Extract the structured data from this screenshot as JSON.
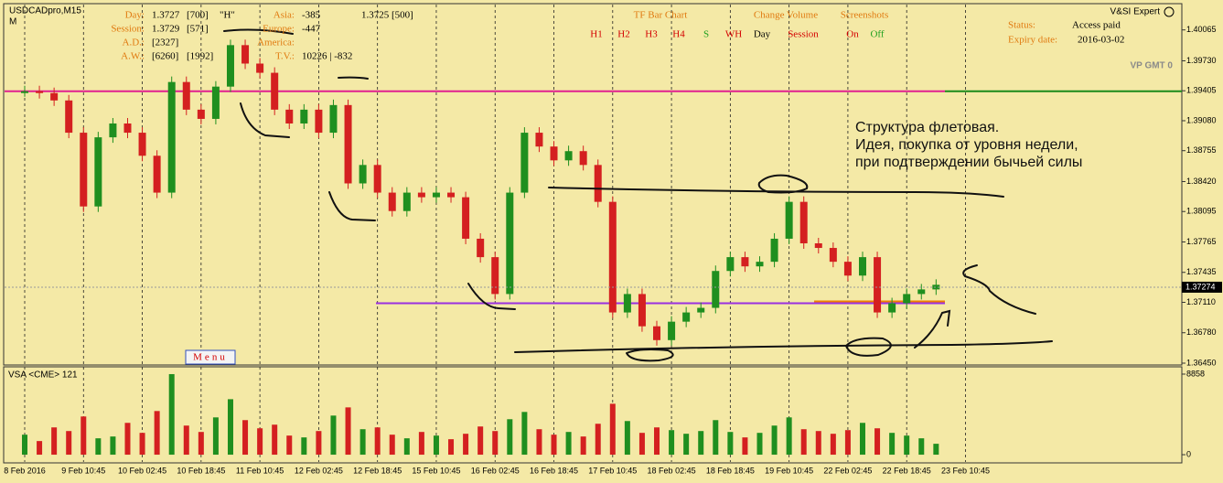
{
  "header": {
    "symbol": "USDCADpro,M15",
    "period": "M",
    "expert": "V&SI Expert",
    "vp": "VP GMT 0",
    "menu": "Menu",
    "volume_label": "VSA <CME> 121"
  },
  "info_panel": {
    "day": {
      "label": "Day:",
      "price": 1.3727,
      "count": "[700]",
      "flag": "\"H\""
    },
    "session": {
      "label": "Session:",
      "price": 1.3729,
      "count": "[571]"
    },
    "ad": {
      "label": "A.D.:",
      "value": "[2327]"
    },
    "aw": {
      "label": "A.W.:",
      "value": "[6260]",
      "value2": "[1992]"
    },
    "asia": {
      "label": "Asia:",
      "value": -385,
      "extra": "1.3725 [500]"
    },
    "europe": {
      "label": "Europe:",
      "value": -447
    },
    "america": {
      "label": "America:"
    },
    "tv": {
      "label": "T.V.:",
      "value": "10226 | -832"
    }
  },
  "tf_bar_chart": {
    "title": "TF Bar Chart",
    "buttons": [
      "H1",
      "H2",
      "H3",
      "H4",
      "S",
      "WH"
    ]
  },
  "change_volume": {
    "title": "Change Volume",
    "buttons": [
      "Day",
      "Session"
    ]
  },
  "screenshots": {
    "title": "Screenshots",
    "buttons": [
      "On",
      "Off"
    ]
  },
  "status": {
    "label": "Status:",
    "value": "Access paid"
  },
  "expiry": {
    "label": "Expiry date:",
    "value": "2016-03-02"
  },
  "annotation": [
    "Структура флетовая.",
    "Идея, покупка от уровня недели,",
    "при подтверждении бычьей силы"
  ],
  "chart_data": [
    {
      "type": "candle-line",
      "up_color": "#1f8f1f",
      "down_color": "#d42020",
      "categories": [
        "8 Feb 2016",
        null,
        null,
        null,
        "9 Feb 10:45",
        null,
        null,
        null,
        "10 Feb 02:45",
        null,
        null,
        null,
        "10 Feb 18:45",
        null,
        null,
        null,
        "11 Feb 10:45",
        null,
        null,
        null,
        "12 Feb 02:45",
        null,
        null,
        null,
        "12 Feb 18:45",
        null,
        null,
        null,
        "15 Feb 10:45",
        null,
        null,
        null,
        "16 Feb 02:45",
        null,
        null,
        null,
        "16 Feb 18:45",
        null,
        null,
        null,
        "17 Feb 10:45",
        null,
        null,
        null,
        "18 Feb 02:45",
        null,
        null,
        null,
        "18 Feb 18:45",
        null,
        null,
        null,
        "19 Feb 10:45",
        null,
        null,
        null,
        "22 Feb 02:45",
        null,
        null,
        null,
        "22 Feb 18:45",
        null,
        null,
        null,
        "23 Feb 10:45"
      ],
      "values": [
        1.394,
        1.3938,
        1.393,
        1.3895,
        1.3815,
        1.389,
        1.3905,
        1.3895,
        1.387,
        1.383,
        1.395,
        1.392,
        1.391,
        1.3945,
        1.399,
        1.397,
        1.396,
        1.392,
        1.3905,
        1.392,
        1.3895,
        1.3925,
        1.384,
        1.386,
        1.383,
        1.381,
        1.383,
        1.3825,
        1.383,
        1.3825,
        1.378,
        1.376,
        1.372,
        1.383,
        1.3895,
        1.388,
        1.3865,
        1.3875,
        1.386,
        1.382,
        1.37,
        1.372,
        1.3685,
        1.367,
        1.369,
        1.37,
        1.3705,
        1.3745,
        1.376,
        1.375,
        1.3755,
        1.378,
        1.382,
        1.3775,
        1.377,
        1.3755,
        1.374,
        1.376,
        1.37,
        1.371,
        1.372,
        1.3725,
        1.373,
        null,
        null
      ],
      "ylim": [
        1.3644,
        1.4034
      ],
      "yticks": [
        1.40065,
        {
          "value": 1.3973,
          "label": "1.39730"
        },
        1.39405,
        {
          "value": 1.3908,
          "label": "1.39080"
        },
        1.38755,
        {
          "value": 1.3842,
          "label": "1.38420"
        },
        1.38095,
        1.37765,
        1.37435,
        {
          "value": 1.3711,
          "label": "1.37110"
        },
        {
          "value": 1.3678,
          "label": "1.36780"
        },
        {
          "value": 1.3645,
          "label": "1.36450"
        }
      ],
      "last_price": 1.37274,
      "levels": [
        {
          "value": 1.394,
          "color": "#e0208f"
        },
        {
          "value": 1.371,
          "color": "#9a30e0"
        },
        {
          "value": 1.3712,
          "color": "#f08000"
        }
      ]
    },
    {
      "type": "volume",
      "values": [
        2200,
        1500,
        3000,
        2600,
        4200,
        1800,
        2000,
        3500,
        2400,
        4800,
        8858,
        3200,
        2500,
        4100,
        6100,
        3800,
        2900,
        3300,
        2100,
        1900,
        2600,
        4300,
        5200,
        2800,
        3000,
        2200,
        1800,
        2500,
        2100,
        1700,
        2300,
        3100,
        2600,
        3900,
        4700,
        2800,
        2200,
        2500,
        2000,
        3400,
        5600,
        3700,
        2400,
        3000,
        2700,
        2300,
        2600,
        3800,
        2500,
        1900,
        2400,
        3200,
        4100,
        2800,
        2600,
        2300,
        2700,
        3500,
        2900,
        2400,
        2100,
        1800,
        1200,
        null,
        null
      ],
      "ylim": [
        -800,
        9560
      ],
      "yticks": [
        0,
        8858
      ]
    }
  ]
}
